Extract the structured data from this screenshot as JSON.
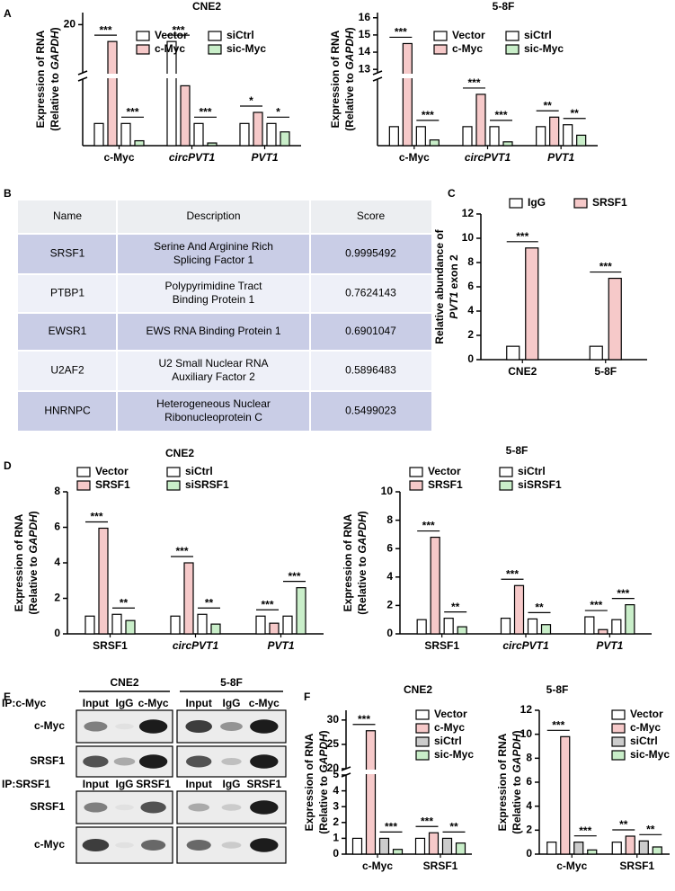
{
  "panel_labels": [
    "A",
    "B",
    "C",
    "D",
    "E",
    "F"
  ],
  "chart_data": [
    {
      "type": "bar",
      "title": "CNE2",
      "ylabel": {
        "lines": [
          [
            {
              "text": "Expression of RNA"
            }
          ],
          [
            {
              "text": "(Relative to "
            },
            {
              "text": "GAPDH",
              "italic": true
            },
            {
              "text": ")"
            }
          ]
        ]
      },
      "categories": [
        "c-Myc",
        "circPVT1",
        "PVT1"
      ],
      "italic_categories": [
        false,
        true,
        true
      ],
      "series": [
        {
          "name": "Vector",
          "color": "#ffffff",
          "values": [
            1.0,
            19.3,
            1.0
          ]
        },
        {
          "name": "c-Myc",
          "color": "#f6c9c9",
          "values": [
            19.3,
            2.7,
            1.5
          ]
        },
        {
          "name": "siCtrl",
          "color": "#ffffff",
          "values": [
            1.0,
            1.0,
            1.0
          ]
        },
        {
          "name": "sic-Myc",
          "color": "#c9eec9",
          "values": [
            0.22,
            0.12,
            0.62
          ]
        }
      ],
      "ylim": [
        0,
        20.5
      ],
      "ybreak": [
        3,
        18
      ],
      "yticks": [
        20
      ],
      "significance": [
        {
          "text": "***",
          "category": 0,
          "bars": [
            0,
            1
          ]
        },
        {
          "text": "***",
          "category": 0,
          "bars": [
            2,
            3
          ]
        },
        {
          "text": "***",
          "category": 1,
          "bars": [
            0,
            1
          ]
        },
        {
          "text": "***",
          "category": 1,
          "bars": [
            2,
            3
          ]
        },
        {
          "text": "*",
          "category": 2,
          "bars": [
            0,
            1
          ]
        },
        {
          "text": "*",
          "category": 2,
          "bars": [
            2,
            3
          ]
        }
      ]
    },
    {
      "type": "bar",
      "title": "5-8F",
      "ylabel": {
        "lines": [
          [
            {
              "text": "Expression of RNA"
            }
          ],
          [
            {
              "text": "(Relative to "
            },
            {
              "text": "GAPDH",
              "italic": true
            },
            {
              "text": ")"
            }
          ]
        ]
      },
      "categories": [
        "c-Myc",
        "circPVT1",
        "PVT1"
      ],
      "italic_categories": [
        false,
        true,
        true
      ],
      "series": [
        {
          "name": "Vector",
          "color": "#ffffff",
          "values": [
            1.0,
            1.0,
            1.0
          ]
        },
        {
          "name": "c-Myc",
          "color": "#f6c9c9",
          "values": [
            14.5,
            2.7,
            1.5
          ]
        },
        {
          "name": "siCtrl",
          "color": "#ffffff",
          "values": [
            1.0,
            1.0,
            1.1
          ]
        },
        {
          "name": "sic-Myc",
          "color": "#c9eec9",
          "values": [
            0.3,
            0.2,
            0.55
          ]
        }
      ],
      "ylim": [
        0,
        16.3
      ],
      "ybreak": [
        3.5,
        12.8
      ],
      "yticks": [
        13,
        14,
        15,
        16
      ],
      "significance": [
        {
          "text": "***",
          "category": 0,
          "bars": [
            0,
            1
          ]
        },
        {
          "text": "***",
          "category": 0,
          "bars": [
            2,
            3
          ]
        },
        {
          "text": "***",
          "category": 1,
          "bars": [
            0,
            1
          ]
        },
        {
          "text": "***",
          "category": 1,
          "bars": [
            2,
            3
          ]
        },
        {
          "text": "**",
          "category": 2,
          "bars": [
            0,
            1
          ]
        },
        {
          "text": "**",
          "category": 2,
          "bars": [
            2,
            3
          ]
        }
      ]
    },
    {
      "type": "bar",
      "ylabel": {
        "lines": [
          [
            {
              "text": "Relative abundance of"
            }
          ],
          [
            {
              "text": "PVT1",
              "italic": true
            },
            {
              "text": " exon 2"
            }
          ]
        ]
      },
      "categories": [
        "CNE2",
        "5-8F"
      ],
      "italic_categories": [
        false,
        false
      ],
      "series": [
        {
          "name": "IgG",
          "color": "#ffffff",
          "values": [
            1.1,
            1.1
          ]
        },
        {
          "name": "SRSF1",
          "color": "#f6c9c9",
          "values": [
            9.2,
            6.7
          ]
        }
      ],
      "ylim": [
        0,
        12
      ],
      "yticks": [
        0,
        2,
        4,
        6,
        8,
        10,
        12
      ],
      "significance": [
        {
          "text": "***",
          "category": 0,
          "bars": [
            0,
            1
          ]
        },
        {
          "text": "***",
          "category": 1,
          "bars": [
            0,
            1
          ]
        }
      ]
    },
    {
      "type": "bar",
      "title": "CNE2",
      "ylabel": {
        "lines": [
          [
            {
              "text": "Expression of RNA"
            }
          ],
          [
            {
              "text": "(Relative to "
            },
            {
              "text": "GAPDH",
              "italic": true
            },
            {
              "text": ")"
            }
          ]
        ]
      },
      "categories": [
        "SRSF1",
        "circPVT1",
        "PVT1"
      ],
      "italic_categories": [
        false,
        true,
        true
      ],
      "series": [
        {
          "name": "Vector",
          "color": "#ffffff",
          "values": [
            1.0,
            1.0,
            1.0
          ]
        },
        {
          "name": "SRSF1",
          "color": "#f6c9c9",
          "values": [
            5.95,
            4.0,
            0.6
          ]
        },
        {
          "name": "siCtrl",
          "color": "#ffffff",
          "values": [
            1.1,
            1.1,
            1.0
          ]
        },
        {
          "name": "siSRSF1",
          "color": "#c9eec9",
          "values": [
            0.75,
            0.55,
            2.6
          ]
        }
      ],
      "ylim": [
        0,
        8
      ],
      "yticks": [
        0,
        2,
        4,
        6,
        8
      ],
      "significance": [
        {
          "text": "***",
          "category": 0,
          "bars": [
            0,
            1
          ]
        },
        {
          "text": "**",
          "category": 0,
          "bars": [
            2,
            3
          ]
        },
        {
          "text": "***",
          "category": 1,
          "bars": [
            0,
            1
          ]
        },
        {
          "text": "**",
          "category": 1,
          "bars": [
            2,
            3
          ]
        },
        {
          "text": "***",
          "category": 2,
          "bars": [
            0,
            1
          ]
        },
        {
          "text": "***",
          "category": 2,
          "bars": [
            2,
            3
          ]
        }
      ]
    },
    {
      "type": "bar",
      "title": "5-8F",
      "ylabel": {
        "lines": [
          [
            {
              "text": "Expression of RNA"
            }
          ],
          [
            {
              "text": "(Relative to "
            },
            {
              "text": "GAPDH",
              "italic": true
            },
            {
              "text": ")"
            }
          ]
        ]
      },
      "categories": [
        "SRSF1",
        "circPVT1",
        "PVT1"
      ],
      "italic_categories": [
        false,
        true,
        true
      ],
      "series": [
        {
          "name": "Vector",
          "color": "#ffffff",
          "values": [
            1.0,
            1.1,
            1.2
          ]
        },
        {
          "name": "SRSF1",
          "color": "#f6c9c9",
          "values": [
            6.8,
            3.4,
            0.3
          ]
        },
        {
          "name": "siCtrl",
          "color": "#ffffff",
          "values": [
            1.1,
            1.05,
            1.0
          ]
        },
        {
          "name": "siSRSF1",
          "color": "#c9eec9",
          "values": [
            0.5,
            0.65,
            2.05
          ]
        }
      ],
      "ylim": [
        0,
        10
      ],
      "yticks": [
        0,
        2,
        4,
        6,
        8,
        10
      ],
      "significance": [
        {
          "text": "***",
          "category": 0,
          "bars": [
            0,
            1
          ]
        },
        {
          "text": "**",
          "category": 0,
          "bars": [
            2,
            3
          ]
        },
        {
          "text": "***",
          "category": 1,
          "bars": [
            0,
            1
          ]
        },
        {
          "text": "**",
          "category": 1,
          "bars": [
            2,
            3
          ]
        },
        {
          "text": "***",
          "category": 2,
          "bars": [
            0,
            1
          ]
        },
        {
          "text": "***",
          "category": 2,
          "bars": [
            2,
            3
          ]
        }
      ]
    },
    {
      "type": "bar",
      "title": "CNE2",
      "ylabel": {
        "lines": [
          [
            {
              "text": "Expression of RNA"
            }
          ],
          [
            {
              "text": "(Relative to "
            },
            {
              "text": "GAPDH",
              "italic": true
            },
            {
              "text": ")"
            }
          ]
        ]
      },
      "categories": [
        "c-Myc",
        "SRSF1"
      ],
      "italic_categories": [
        false,
        false
      ],
      "series": [
        {
          "name": "Vector",
          "color": "#ffffff",
          "values": [
            1.0,
            1.0
          ]
        },
        {
          "name": "c-Myc",
          "color": "#f6c9c9",
          "values": [
            27.8,
            1.35
          ]
        },
        {
          "name": "siCtrl",
          "color": "#cccccc",
          "values": [
            1.0,
            1.0
          ]
        },
        {
          "name": "sic-Myc",
          "color": "#c9eec9",
          "values": [
            0.3,
            0.7
          ]
        }
      ],
      "ylim": [
        0,
        32
      ],
      "ybreak": [
        5,
        20
      ],
      "yticks": [
        0,
        1,
        2,
        3,
        4,
        5,
        20,
        25,
        30
      ],
      "significance": [
        {
          "text": "***",
          "category": 0,
          "bars": [
            0,
            1
          ]
        },
        {
          "text": "***",
          "category": 0,
          "bars": [
            2,
            3
          ]
        },
        {
          "text": "***",
          "category": 1,
          "bars": [
            0,
            1
          ]
        },
        {
          "text": "**",
          "category": 1,
          "bars": [
            2,
            3
          ]
        }
      ]
    },
    {
      "type": "bar",
      "title": "5-8F",
      "ylabel": {
        "lines": [
          [
            {
              "text": "Expression of RNA"
            }
          ],
          [
            {
              "text": "(Relative to "
            },
            {
              "text": "GAPDH",
              "italic": true
            },
            {
              "text": ")"
            }
          ]
        ]
      },
      "categories": [
        "c-Myc",
        "SRSF1"
      ],
      "italic_categories": [
        false,
        false
      ],
      "series": [
        {
          "name": "Vector",
          "color": "#ffffff",
          "values": [
            1.0,
            1.0
          ]
        },
        {
          "name": "c-Myc",
          "color": "#f6c9c9",
          "values": [
            9.8,
            1.5
          ]
        },
        {
          "name": "siCtrl",
          "color": "#cccccc",
          "values": [
            1.0,
            1.1
          ]
        },
        {
          "name": "sic-Myc",
          "color": "#c9eec9",
          "values": [
            0.35,
            0.6
          ]
        }
      ],
      "ylim": [
        0,
        12
      ],
      "yticks": [
        0,
        2,
        4,
        6,
        8,
        10,
        12
      ],
      "significance": [
        {
          "text": "***",
          "category": 0,
          "bars": [
            0,
            1
          ]
        },
        {
          "text": "***",
          "category": 0,
          "bars": [
            2,
            3
          ]
        },
        {
          "text": "**",
          "category": 1,
          "bars": [
            0,
            1
          ]
        },
        {
          "text": "**",
          "category": 1,
          "bars": [
            2,
            3
          ]
        }
      ]
    }
  ],
  "table": {
    "header": [
      "Name",
      "Description",
      "Score"
    ],
    "highlight_row": 0,
    "highlight_color": "#e8242a",
    "rows": [
      [
        [
          "SRSF1"
        ],
        [
          "Serine And Arginine Rich",
          "Splicing Factor 1"
        ],
        [
          "0.9995492"
        ]
      ],
      [
        [
          "PTBP1"
        ],
        [
          "Polypyrimidine Tract",
          "Binding Protein 1"
        ],
        [
          "0.7624143"
        ]
      ],
      [
        [
          "EWSR1"
        ],
        [
          "EWS RNA Binding Protein 1"
        ],
        [
          "0.6901047"
        ]
      ],
      [
        [
          "U2AF2"
        ],
        [
          "U2 Small Nuclear RNA",
          "Auxiliary Factor 2"
        ],
        [
          "0.5896483"
        ]
      ],
      [
        [
          "HNRNPC"
        ],
        [
          "Heterogeneous Nuclear",
          "Ribonucleoprotein C"
        ],
        [
          "0.5499023"
        ]
      ]
    ]
  },
  "blots": {
    "cell_lines": [
      "CNE2",
      "5-8F"
    ],
    "blocks": [
      {
        "ip": "IP:c-Myc",
        "lanes": [
          [
            "Input",
            "IgG",
            "c-Myc"
          ],
          [
            "Input",
            "IgG",
            "c-Myc"
          ]
        ],
        "rows": [
          "c-Myc",
          "SRSF1"
        ]
      },
      {
        "ip": "IP:SRSF1",
        "lanes": [
          [
            "Input",
            "IgG",
            "SRSF1"
          ],
          [
            "Input",
            "IgG",
            "SRSF1"
          ]
        ],
        "rows": [
          "SRSF1",
          "c-Myc"
        ]
      }
    ]
  }
}
